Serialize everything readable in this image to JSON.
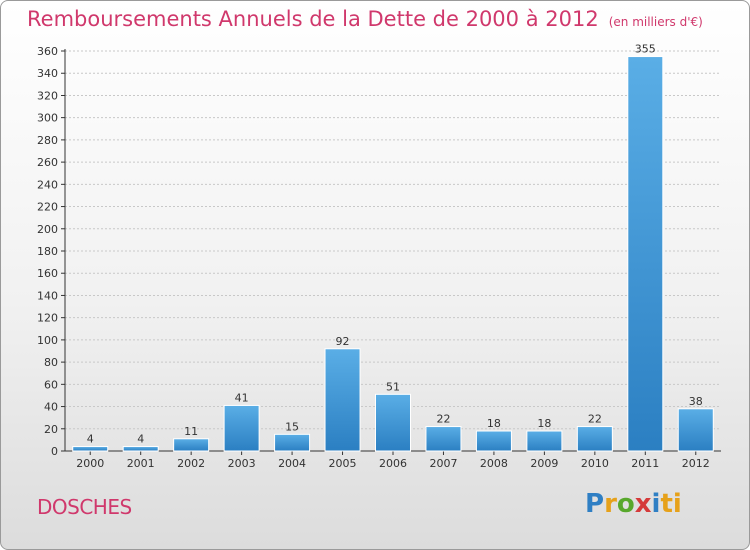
{
  "header": {
    "title": "Remboursements Annuels de la Dette de 2000 à 2012",
    "unit": "(en milliers d'€)"
  },
  "footer": {
    "commune": "DOSCHES",
    "logo_letters": [
      "P",
      "r",
      "o",
      "x",
      "i",
      "ti"
    ]
  },
  "colors": {
    "bar_top": "#5aaee6",
    "bar_bottom": "#2b7fc2",
    "title": "#d0386c"
  },
  "chart_data": {
    "type": "bar",
    "title": "Remboursements Annuels de la Dette de 2000 à 2012",
    "xlabel": "",
    "ylabel": "",
    "categories": [
      "2000",
      "2001",
      "2002",
      "2003",
      "2004",
      "2005",
      "2006",
      "2007",
      "2008",
      "2009",
      "2010",
      "2011",
      "2012"
    ],
    "values": [
      4,
      4,
      11,
      41,
      15,
      92,
      51,
      22,
      18,
      18,
      22,
      355,
      38
    ],
    "ylim": [
      0,
      360
    ],
    "yticks": [
      0,
      20,
      40,
      60,
      80,
      100,
      120,
      140,
      160,
      180,
      200,
      220,
      240,
      260,
      280,
      300,
      320,
      340,
      360
    ],
    "grid": true
  }
}
